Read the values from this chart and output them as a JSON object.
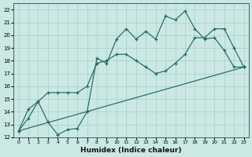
{
  "xlabel": "Humidex (Indice chaleur)",
  "bg_color": "#cce8e4",
  "grid_color": "#aad4cc",
  "line_color": "#1f6b64",
  "xlim": [
    -0.5,
    23.5
  ],
  "ylim": [
    12,
    22.5
  ],
  "xticks": [
    0,
    1,
    2,
    3,
    4,
    5,
    6,
    7,
    8,
    9,
    10,
    11,
    12,
    13,
    14,
    15,
    16,
    17,
    18,
    19,
    20,
    21,
    22,
    23
  ],
  "yticks": [
    12,
    13,
    14,
    15,
    16,
    17,
    18,
    19,
    20,
    21,
    22
  ],
  "line1_x": [
    0,
    1,
    2,
    3,
    4,
    5,
    6,
    7,
    8,
    9,
    10,
    11,
    12,
    13,
    14,
    15,
    16,
    17,
    18,
    19,
    20,
    21,
    22,
    23
  ],
  "line1_y": [
    12.5,
    14.2,
    14.8,
    13.2,
    12.2,
    12.6,
    12.7,
    14.0,
    18.2,
    17.8,
    19.7,
    20.5,
    19.7,
    20.3,
    19.7,
    21.5,
    21.2,
    21.9,
    20.5,
    19.7,
    19.8,
    18.8,
    17.5,
    17.5
  ],
  "line2_x": [
    0,
    1,
    2,
    3,
    4,
    5,
    6,
    7,
    8,
    9,
    10,
    11,
    12,
    13,
    14,
    15,
    16,
    17,
    18,
    19,
    20,
    21,
    22,
    23
  ],
  "line2_y": [
    12.5,
    13.5,
    14.8,
    15.5,
    15.5,
    15.5,
    15.5,
    16.0,
    17.8,
    18.0,
    18.5,
    18.5,
    18.0,
    17.5,
    17.0,
    17.2,
    17.8,
    18.5,
    19.8,
    19.8,
    20.5,
    20.5,
    19.0,
    17.5
  ],
  "line3_x": [
    0,
    23
  ],
  "line3_y": [
    12.5,
    17.5
  ]
}
